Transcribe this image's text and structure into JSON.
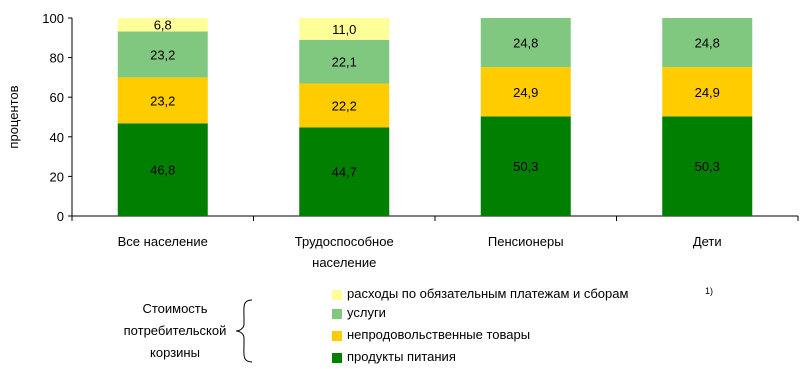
{
  "chart_data": {
    "type": "bar",
    "stacked": true,
    "categories": [
      "Все население",
      "Трудоспособное население",
      "Пенсионеры",
      "Дети"
    ],
    "category_lines": [
      [
        "Все население"
      ],
      [
        "Трудоспособное",
        "население"
      ],
      [
        "Пенсионеры"
      ],
      [
        "Дети"
      ]
    ],
    "series": [
      {
        "name": "продукты питания",
        "values": [
          46.8,
          44.7,
          50.3,
          50.3
        ],
        "labels": [
          "46,8",
          "44,7",
          "50,3",
          "50,3"
        ],
        "color": "#007f00",
        "label_color": "#000000"
      },
      {
        "name": "непродовольственные товары",
        "values": [
          23.2,
          22.2,
          24.9,
          24.9
        ],
        "labels": [
          "23,2",
          "22,2",
          "24,9",
          "24,9"
        ],
        "color": "#ffcc00",
        "label_color": "#000000"
      },
      {
        "name": "услуги",
        "values": [
          23.2,
          22.1,
          24.8,
          24.8
        ],
        "labels": [
          "23,2",
          "22,1",
          "24,8",
          "24,8"
        ],
        "color": "#80c880",
        "label_color": "#000000"
      },
      {
        "name": "расходы по обязательным платежам и сборам",
        "values": [
          6.8,
          11.0,
          0,
          0
        ],
        "labels": [
          "6,8",
          "11,0",
          "",
          ""
        ],
        "color": "#ffff99",
        "label_color": "#000000"
      }
    ],
    "ylabel": "процентов",
    "ylim": [
      0,
      100
    ],
    "yticks": [
      0,
      20,
      40,
      60,
      80,
      100
    ],
    "legend_position": "bottom-right",
    "grid": false
  },
  "legend": {
    "title_lines": [
      "Стоимость",
      "потребительской",
      "корзины"
    ],
    "items": [
      {
        "label": "расходы по обязательным платежам и сборам",
        "color": "#ffff99"
      },
      {
        "label": "услуги",
        "color": "#80c880"
      },
      {
        "label": "непродовольственные товары",
        "color": "#ffcc00"
      },
      {
        "label": "продукты питания",
        "color": "#007f00"
      }
    ],
    "footnote": "1)"
  }
}
